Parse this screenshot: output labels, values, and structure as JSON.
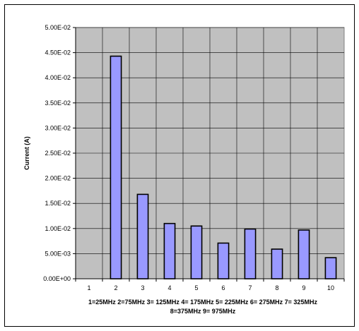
{
  "chart_data": {
    "type": "bar",
    "title": "",
    "ylabel": "Current (A)",
    "xlabel_lines": [
      "1=25MHz 2=75MHz 3= 125MHz 4= 175MHz 5= 225MHz 6= 275MHz 7= 325MHz",
      "8=375MHz 9= 975MHz"
    ],
    "categories": [
      "1",
      "2",
      "3",
      "4",
      "5",
      "6",
      "7",
      "8",
      "9",
      "10"
    ],
    "values": [
      0,
      0.0443,
      0.0168,
      0.011,
      0.0105,
      0.0071,
      0.0099,
      0.0059,
      0.0097,
      0.0042
    ],
    "ylim": [
      0,
      0.05
    ],
    "yticks": [
      0,
      0.005,
      0.01,
      0.015,
      0.02,
      0.025,
      0.03,
      0.035,
      0.04,
      0.045,
      0.05
    ],
    "ytick_labels": [
      "0.00E+00",
      "5.00E-03",
      "1.00E-02",
      "1.50E-02",
      "2.00E-02",
      "2.50E-02",
      "3.00E-02",
      "3.50E-02",
      "4.00E-02",
      "4.50E-02",
      "5.00E-02"
    ],
    "grid": true,
    "legend": "none",
    "colors": {
      "plot_background": "#c0c0c0",
      "bar_fill": "#9999ff",
      "bar_stroke": "#000000",
      "grid": "#000000"
    }
  }
}
